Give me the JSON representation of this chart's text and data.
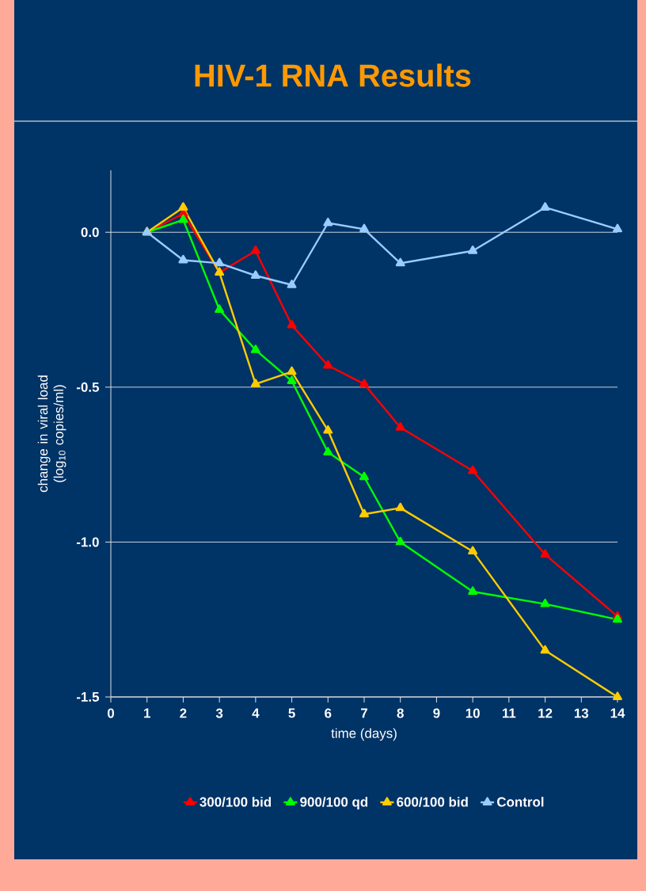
{
  "chart_data": {
    "type": "line",
    "title": "HIV-1 RNA Results",
    "xlabel": "time (days)",
    "ylabel": "change in viral load (log$_{10}$ copies/ml)",
    "x": [
      1,
      2,
      3,
      4,
      5,
      6,
      7,
      8,
      10,
      12,
      14
    ],
    "series": [
      {
        "name": "300/100 bid",
        "color": "#ff0000",
        "values": [
          0.0,
          0.06,
          -0.13,
          -0.06,
          -0.3,
          -0.43,
          -0.49,
          -0.63,
          -0.77,
          -1.04,
          -1.24
        ]
      },
      {
        "name": "900/100 qd",
        "color": "#00ff00",
        "values": [
          0.0,
          0.04,
          -0.25,
          -0.38,
          -0.48,
          -0.71,
          -0.79,
          -1.0,
          -1.16,
          -1.2,
          -1.25
        ]
      },
      {
        "name": "600/100 bid",
        "color": "#ffcc00",
        "values": [
          0.0,
          0.08,
          -0.13,
          -0.49,
          -0.45,
          -0.64,
          -0.91,
          -0.89,
          -1.03,
          -1.35,
          -1.5
        ]
      },
      {
        "name": "Control",
        "color": "#99ccff",
        "values": [
          0.0,
          -0.09,
          -0.1,
          -0.14,
          -0.17,
          0.03,
          0.01,
          -0.1,
          -0.06,
          0.08,
          0.01
        ]
      }
    ],
    "xlim": [
      0,
      14
    ],
    "xticks": [
      0,
      1,
      2,
      3,
      4,
      5,
      6,
      7,
      8,
      9,
      10,
      11,
      12,
      13,
      14
    ],
    "ylim": [
      -1.5,
      0.2
    ],
    "yticks": [
      {
        "value": 0,
        "label": "0.0"
      },
      {
        "value": -0.5,
        "label": "-0.5"
      },
      {
        "value": -1.0,
        "label": "-1.0"
      },
      {
        "value": -1.5,
        "label": "-1.5"
      }
    ],
    "grid": "y",
    "legend": "bottom",
    "marker": "triangle",
    "line_style": "solid"
  }
}
